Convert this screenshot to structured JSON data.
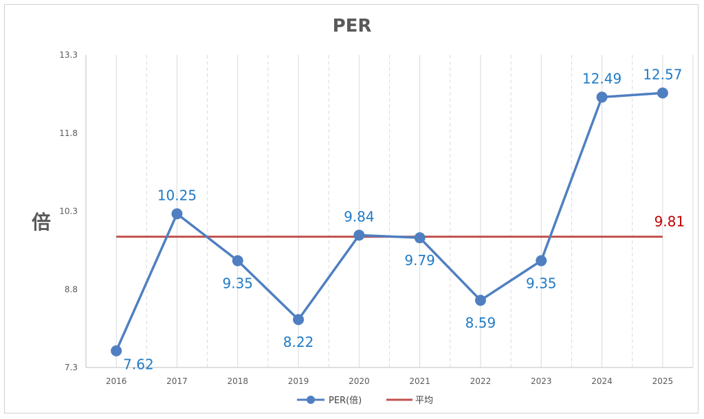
{
  "chart_data": {
    "type": "line",
    "title": "PER",
    "ylabel": "倍",
    "xlabel": "",
    "categories": [
      "2016",
      "2017",
      "2018",
      "2019",
      "2020",
      "2021",
      "2022",
      "2023",
      "2024",
      "2025"
    ],
    "ylim": [
      7.3,
      13.3
    ],
    "yticks": [
      "13.3",
      "11.8",
      "10.3",
      "8.8",
      "7.3"
    ],
    "series": [
      {
        "name": "PER(倍)",
        "color": "#4f7fc0",
        "values": [
          7.62,
          10.25,
          9.35,
          8.22,
          9.84,
          9.79,
          8.59,
          9.35,
          12.49,
          12.57
        ],
        "labels": [
          "7.62",
          "10.25",
          "9.35",
          "8.22",
          "9.84",
          "9.79",
          "8.59",
          "9.35",
          "12.49",
          "12.57"
        ]
      },
      {
        "name": "平均",
        "color": "#c0504d",
        "value": 9.81,
        "label": "9.81"
      }
    ],
    "grid": "vertical dashed",
    "legend": "bottom"
  }
}
